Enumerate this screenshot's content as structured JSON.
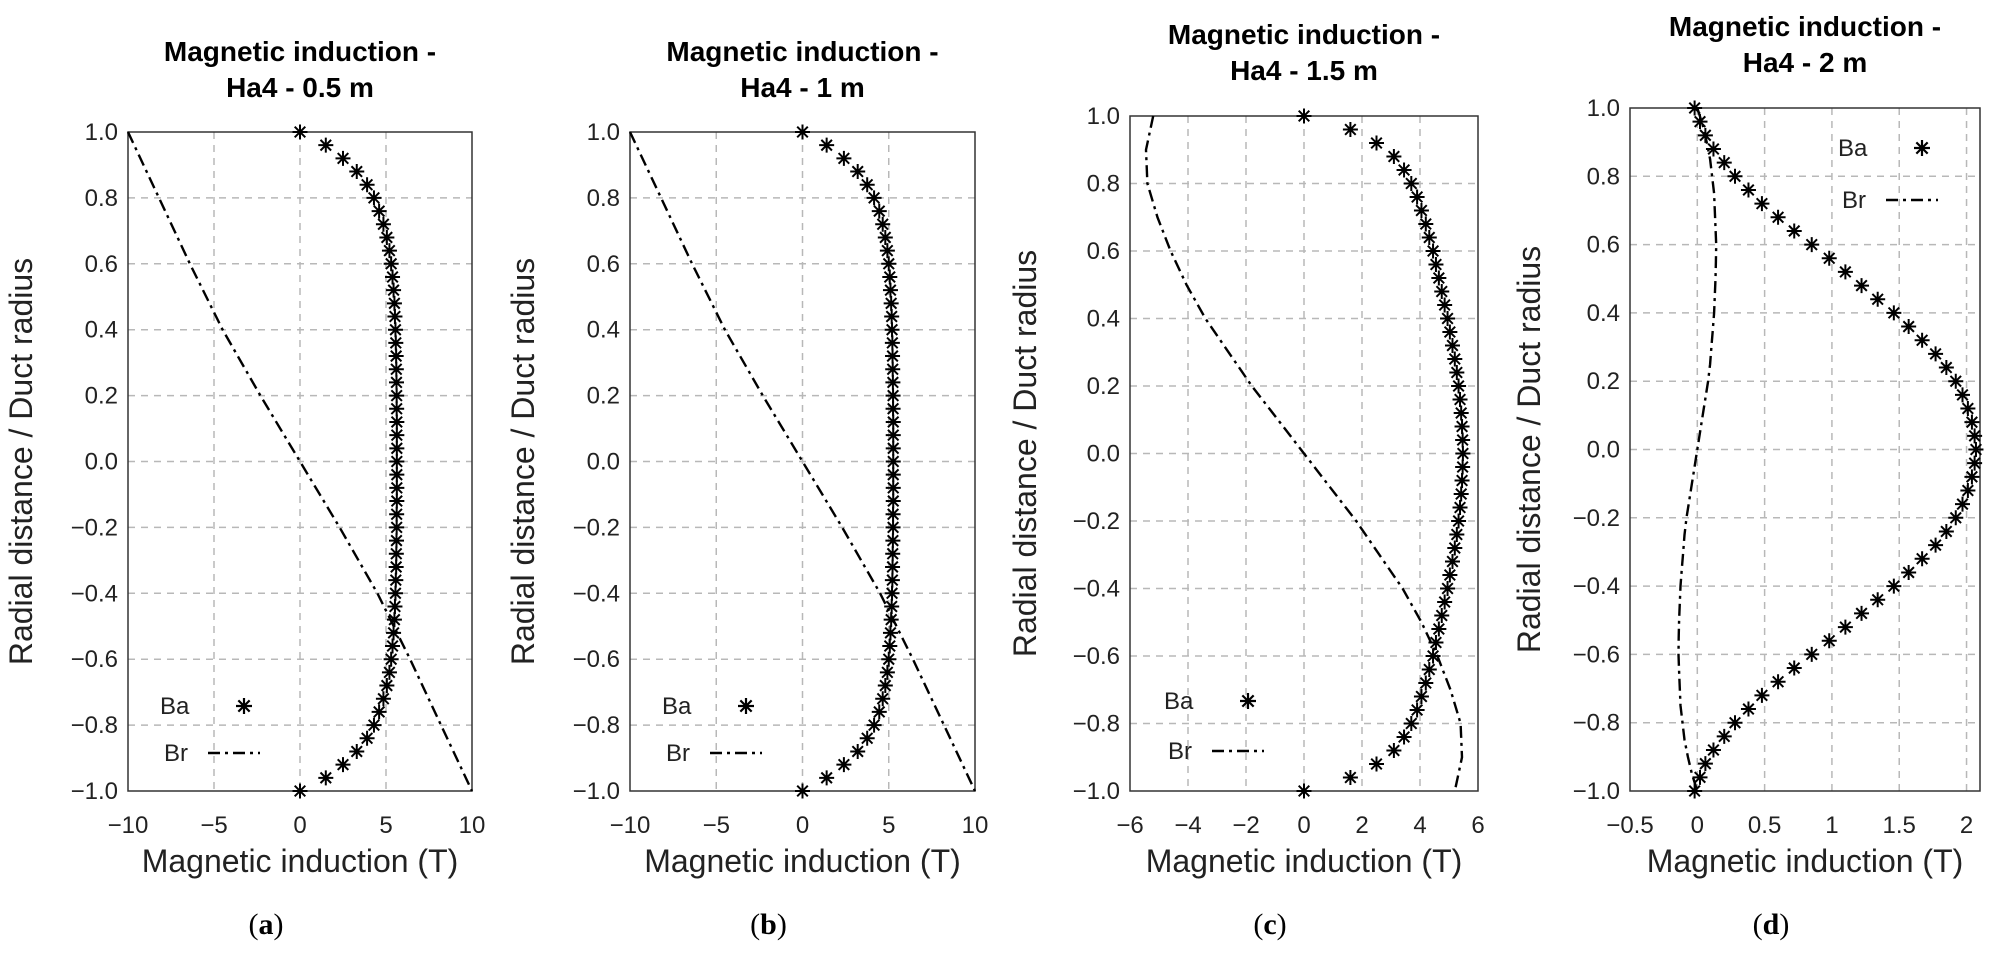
{
  "colors": {
    "line": "#000000",
    "grid": "#b8b8b8",
    "frame": "#333333"
  },
  "chart_data": [
    {
      "type": "line",
      "caption": "a",
      "title": [
        "Magnetic induction -",
        "Ha4 - 0.5 m"
      ],
      "xlabel": "Magnetic induction (T)",
      "ylabel": "Radial distance / Duct radius",
      "xlim": [
        -10,
        10
      ],
      "ylim": [
        -1,
        1
      ],
      "xticks": [
        -10,
        -5,
        0,
        5,
        10
      ],
      "xtick_labels": [
        "−10",
        "−5",
        "0",
        "5",
        "10"
      ],
      "yticks": [
        -1,
        -0.8,
        -0.6,
        -0.4,
        -0.2,
        0,
        0.2,
        0.4,
        0.6,
        0.8,
        1
      ],
      "ytick_labels": [
        "−1.0",
        "−0.8",
        "−0.6",
        "−0.4",
        "−0.2",
        "0.0",
        "0.2",
        "0.4",
        "0.6",
        "0.8",
        "1.0"
      ],
      "legend_position": "bottom-left",
      "grid": true,
      "series": [
        {
          "name": "Ba",
          "style": "markers",
          "y": [
            1,
            0.96,
            0.92,
            0.88,
            0.84,
            0.8,
            0.76,
            0.72,
            0.68,
            0.64,
            0.6,
            0.56,
            0.52,
            0.48,
            0.44,
            0.4,
            0.36,
            0.32,
            0.28,
            0.24,
            0.2,
            0.16,
            0.12,
            0.08,
            0.04,
            0,
            -0.04,
            -0.08,
            -0.12,
            -0.16,
            -0.2,
            -0.24,
            -0.28,
            -0.32,
            -0.36,
            -0.4,
            -0.44,
            -0.48,
            -0.52,
            -0.56,
            -0.6,
            -0.64,
            -0.68,
            -0.72,
            -0.76,
            -0.8,
            -0.84,
            -0.88,
            -0.92,
            -0.96,
            -1
          ],
          "x": [
            0,
            1.5,
            2.5,
            3.3,
            3.9,
            4.3,
            4.6,
            4.85,
            5.05,
            5.2,
            5.3,
            5.38,
            5.44,
            5.49,
            5.52,
            5.55,
            5.57,
            5.59,
            5.6,
            5.61,
            5.62,
            5.62,
            5.63,
            5.63,
            5.63,
            5.63,
            5.63,
            5.63,
            5.63,
            5.62,
            5.62,
            5.61,
            5.6,
            5.59,
            5.57,
            5.55,
            5.52,
            5.49,
            5.44,
            5.38,
            5.3,
            5.2,
            5.05,
            4.85,
            4.6,
            4.3,
            3.9,
            3.3,
            2.5,
            1.5,
            0
          ]
        },
        {
          "name": "Br",
          "style": "dashdot",
          "y": [
            1,
            0.8,
            0.6,
            0.4,
            0.2,
            0,
            -0.2,
            -0.4,
            -0.6,
            -0.8,
            -1
          ],
          "x": [
            -10,
            -8.2,
            -6.4,
            -4.5,
            -2.3,
            0,
            2.3,
            4.5,
            6.4,
            8.2,
            10
          ]
        }
      ]
    },
    {
      "type": "line",
      "caption": "b",
      "title": [
        "Magnetic induction -",
        "Ha4 - 1 m"
      ],
      "xlabel": "Magnetic induction (T)",
      "ylabel": "Radial distance / Duct radius",
      "xlim": [
        -10,
        10
      ],
      "ylim": [
        -1,
        1
      ],
      "xticks": [
        -10,
        -5,
        0,
        5,
        10
      ],
      "xtick_labels": [
        "−10",
        "−5",
        "0",
        "5",
        "10"
      ],
      "yticks": [
        -1,
        -0.8,
        -0.6,
        -0.4,
        -0.2,
        0,
        0.2,
        0.4,
        0.6,
        0.8,
        1
      ],
      "ytick_labels": [
        "−1.0",
        "−0.8",
        "−0.6",
        "−0.4",
        "−0.2",
        "0.0",
        "0.2",
        "0.4",
        "0.6",
        "0.8",
        "1.0"
      ],
      "legend_position": "bottom-left",
      "grid": true,
      "series": [
        {
          "name": "Ba",
          "style": "markers",
          "y": [
            1,
            0.96,
            0.92,
            0.88,
            0.84,
            0.8,
            0.76,
            0.72,
            0.68,
            0.64,
            0.6,
            0.56,
            0.52,
            0.48,
            0.44,
            0.4,
            0.36,
            0.32,
            0.28,
            0.24,
            0.2,
            0.16,
            0.12,
            0.08,
            0.04,
            0,
            -0.04,
            -0.08,
            -0.12,
            -0.16,
            -0.2,
            -0.24,
            -0.28,
            -0.32,
            -0.36,
            -0.4,
            -0.44,
            -0.48,
            -0.52,
            -0.56,
            -0.6,
            -0.64,
            -0.68,
            -0.72,
            -0.76,
            -0.8,
            -0.84,
            -0.88,
            -0.92,
            -0.96,
            -1
          ],
          "x": [
            0,
            1.4,
            2.4,
            3.2,
            3.75,
            4.15,
            4.45,
            4.65,
            4.8,
            4.92,
            5.0,
            5.06,
            5.1,
            5.14,
            5.17,
            5.19,
            5.21,
            5.22,
            5.23,
            5.24,
            5.25,
            5.25,
            5.26,
            5.26,
            5.26,
            5.26,
            5.26,
            5.26,
            5.26,
            5.25,
            5.25,
            5.24,
            5.23,
            5.22,
            5.21,
            5.19,
            5.17,
            5.14,
            5.1,
            5.06,
            5.0,
            4.92,
            4.8,
            4.65,
            4.45,
            4.15,
            3.75,
            3.2,
            2.4,
            1.4,
            0
          ]
        },
        {
          "name": "Br",
          "style": "dashdot",
          "y": [
            1,
            0.8,
            0.6,
            0.4,
            0.2,
            0,
            -0.2,
            -0.4,
            -0.6,
            -0.8,
            -1
          ],
          "x": [
            -10,
            -8.2,
            -6.4,
            -4.5,
            -2.3,
            0,
            2.3,
            4.5,
            6.4,
            8.2,
            10
          ]
        }
      ]
    },
    {
      "type": "line",
      "caption": "c",
      "title": [
        "Magnetic induction -",
        "Ha4 - 1.5 m"
      ],
      "xlabel": "Magnetic induction (T)",
      "ylabel": "Radial distance / Duct radius",
      "xlim": [
        -6,
        6
      ],
      "ylim": [
        -1,
        1
      ],
      "xticks": [
        -6,
        -4,
        -2,
        0,
        2,
        4,
        6
      ],
      "xtick_labels": [
        "−6",
        "−4",
        "−2",
        "0",
        "2",
        "4",
        "6"
      ],
      "yticks": [
        -1,
        -0.8,
        -0.6,
        -0.4,
        -0.2,
        0,
        0.2,
        0.4,
        0.6,
        0.8,
        1
      ],
      "ytick_labels": [
        "−1.0",
        "−0.8",
        "−0.6",
        "−0.4",
        "−0.2",
        "0.0",
        "0.2",
        "0.4",
        "0.6",
        "0.8",
        "1.0"
      ],
      "legend_position": "bottom-left",
      "grid": true,
      "series": [
        {
          "name": "Ba",
          "style": "markers",
          "y": [
            1,
            0.96,
            0.92,
            0.88,
            0.84,
            0.8,
            0.76,
            0.72,
            0.68,
            0.64,
            0.6,
            0.56,
            0.52,
            0.48,
            0.44,
            0.4,
            0.36,
            0.32,
            0.28,
            0.24,
            0.2,
            0.16,
            0.12,
            0.08,
            0.04,
            0,
            -0.04,
            -0.08,
            -0.12,
            -0.16,
            -0.2,
            -0.24,
            -0.28,
            -0.32,
            -0.36,
            -0.4,
            -0.44,
            -0.48,
            -0.52,
            -0.56,
            -0.6,
            -0.64,
            -0.68,
            -0.72,
            -0.76,
            -0.8,
            -0.84,
            -0.88,
            -0.92,
            -0.96,
            -1
          ],
          "x": [
            0,
            1.6,
            2.5,
            3.1,
            3.45,
            3.7,
            3.9,
            4.05,
            4.2,
            4.32,
            4.45,
            4.55,
            4.65,
            4.75,
            4.85,
            4.95,
            5.03,
            5.12,
            5.2,
            5.27,
            5.33,
            5.38,
            5.42,
            5.45,
            5.47,
            5.48,
            5.47,
            5.45,
            5.42,
            5.38,
            5.33,
            5.27,
            5.2,
            5.12,
            5.03,
            4.95,
            4.85,
            4.75,
            4.65,
            4.55,
            4.45,
            4.32,
            4.2,
            4.05,
            3.9,
            3.7,
            3.45,
            3.1,
            2.5,
            1.6,
            0
          ]
        },
        {
          "name": "Br",
          "style": "dashdot",
          "y": [
            1,
            0.9,
            0.8,
            0.7,
            0.6,
            0.5,
            0.4,
            0.3,
            0.2,
            0.1,
            0,
            -0.1,
            -0.2,
            -0.3,
            -0.4,
            -0.5,
            -0.6,
            -0.7,
            -0.8,
            -0.9,
            -1
          ],
          "x": [
            -5.2,
            -5.45,
            -5.4,
            -5.05,
            -4.6,
            -4.05,
            -3.4,
            -2.6,
            -1.8,
            -0.9,
            0,
            0.9,
            1.8,
            2.6,
            3.4,
            4.05,
            4.6,
            5.05,
            5.4,
            5.45,
            5.2
          ]
        }
      ]
    },
    {
      "type": "line",
      "caption": "d",
      "title": [
        "Magnetic induction -",
        "Ha4 - 2 m"
      ],
      "xlabel": "Magnetic induction (T)",
      "ylabel": "Radial distance / Duct radius",
      "xlim": [
        -0.5,
        2.1
      ],
      "ylim": [
        -1,
        1
      ],
      "xticks": [
        -0.5,
        0,
        0.5,
        1,
        1.5,
        2
      ],
      "xtick_labels": [
        "−0.5",
        "0",
        "0.5",
        "1",
        "1.5",
        "2"
      ],
      "yticks": [
        -1,
        -0.8,
        -0.6,
        -0.4,
        -0.2,
        0,
        0.2,
        0.4,
        0.6,
        0.8,
        1
      ],
      "ytick_labels": [
        "−1.0",
        "−0.8",
        "−0.6",
        "−0.4",
        "−0.2",
        "0.0",
        "0.2",
        "0.4",
        "0.6",
        "0.8",
        "1.0"
      ],
      "legend_position": "top-right",
      "grid": true,
      "series": [
        {
          "name": "Ba",
          "style": "markers",
          "y": [
            1,
            0.96,
            0.92,
            0.88,
            0.84,
            0.8,
            0.76,
            0.72,
            0.68,
            0.64,
            0.6,
            0.56,
            0.52,
            0.48,
            0.44,
            0.4,
            0.36,
            0.32,
            0.28,
            0.24,
            0.2,
            0.16,
            0.12,
            0.08,
            0.04,
            0,
            -0.04,
            -0.08,
            -0.12,
            -0.16,
            -0.2,
            -0.24,
            -0.28,
            -0.32,
            -0.36,
            -0.4,
            -0.44,
            -0.48,
            -0.52,
            -0.56,
            -0.6,
            -0.64,
            -0.68,
            -0.72,
            -0.76,
            -0.8,
            -0.84,
            -0.88,
            -0.92,
            -0.96,
            -1
          ],
          "x": [
            -0.02,
            0.02,
            0.06,
            0.12,
            0.2,
            0.28,
            0.38,
            0.48,
            0.6,
            0.72,
            0.85,
            0.98,
            1.1,
            1.22,
            1.34,
            1.46,
            1.57,
            1.67,
            1.77,
            1.85,
            1.92,
            1.97,
            2.01,
            2.04,
            2.06,
            2.07,
            2.06,
            2.04,
            2.01,
            1.97,
            1.92,
            1.85,
            1.77,
            1.67,
            1.57,
            1.46,
            1.34,
            1.22,
            1.1,
            0.98,
            0.85,
            0.72,
            0.6,
            0.48,
            0.38,
            0.28,
            0.2,
            0.12,
            0.06,
            0.02,
            -0.02
          ]
        },
        {
          "name": "Br",
          "style": "dashdot",
          "y": [
            1,
            0.95,
            0.9,
            0.85,
            0.8,
            0.75,
            0.7,
            0.65,
            0.6,
            0.55,
            0.5,
            0.45,
            0.4,
            0.35,
            0.3,
            0.25,
            0.2,
            0.15,
            0.1,
            0.05,
            0,
            -0.05,
            -0.1,
            -0.15,
            -0.2,
            -0.25,
            -0.3,
            -0.35,
            -0.4,
            -0.45,
            -0.5,
            -0.55,
            -0.6,
            -0.65,
            -0.7,
            -0.75,
            -0.8,
            -0.85,
            -0.9,
            -0.95,
            -1
          ],
          "x": [
            0,
            0.04,
            0.07,
            0.095,
            0.11,
            0.125,
            0.13,
            0.135,
            0.14,
            0.138,
            0.135,
            0.13,
            0.125,
            0.115,
            0.105,
            0.095,
            0.08,
            0.06,
            0.04,
            0.02,
            0,
            -0.02,
            -0.04,
            -0.06,
            -0.08,
            -0.095,
            -0.105,
            -0.115,
            -0.125,
            -0.13,
            -0.135,
            -0.138,
            -0.14,
            -0.135,
            -0.13,
            -0.125,
            -0.11,
            -0.095,
            -0.07,
            -0.04,
            0
          ]
        }
      ]
    }
  ]
}
